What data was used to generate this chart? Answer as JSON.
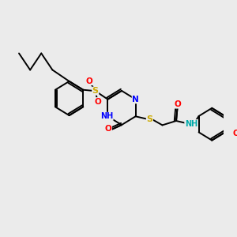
{
  "bg_color": "#ebebeb",
  "lw": 1.4,
  "atom_colors": {
    "N": "#0000ff",
    "O": "#ff0000",
    "S": "#ccaa00",
    "H": "#00aaaa",
    "C": "#000000"
  },
  "figsize": [
    3.0,
    3.0
  ],
  "dpi": 100,
  "xlim": [
    0,
    10
  ],
  "ylim": [
    0,
    10
  ]
}
